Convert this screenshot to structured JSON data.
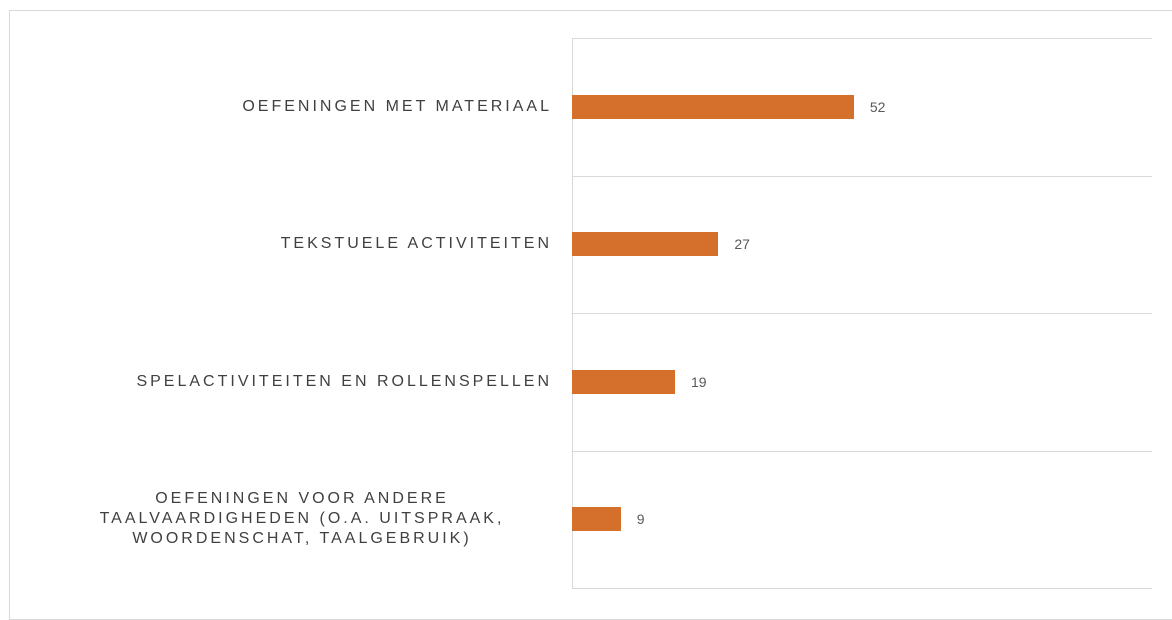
{
  "chart_data": {
    "type": "bar",
    "orientation": "horizontal",
    "categories": [
      "OEFENINGEN MET MATERIAAL",
      "TEKSTUELE ACTIVITEITEN",
      "SPELACTIVITEITEN EN ROLLENSPELLEN",
      "OEFENINGEN VOOR ANDERE TAALVAARDIGHEDEN (O.A. UITSPRAAK, WOORDENSCHAT, TAALGEBRUIK)"
    ],
    "values": [
      52,
      27,
      19,
      9
    ],
    "color": "#d4702c",
    "grid": true
  }
}
